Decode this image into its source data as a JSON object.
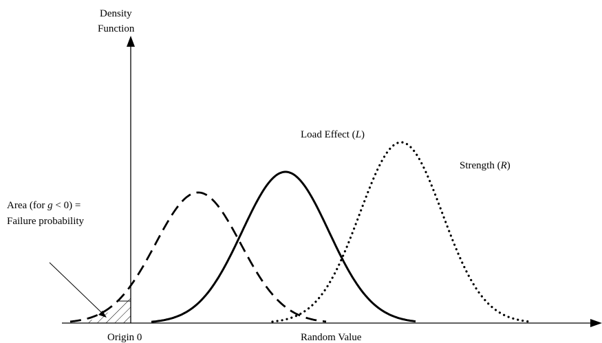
{
  "axis": {
    "y_label_line1": "Density",
    "y_label_line2": "Function",
    "x_label": "Random Value",
    "origin_label": "Origin 0"
  },
  "annotations": {
    "area_line1_prefix": "Area (for ",
    "area_var": "g",
    "area_line1_suffix": " < 0) =",
    "area_line2": "Failure probability",
    "load_prefix": "Load Effect (",
    "load_symbol": "L",
    "load_suffix": ")",
    "strength_prefix": "Strength (",
    "strength_symbol": "R",
    "strength_suffix": ")"
  },
  "colors": {
    "ink": "#000000",
    "background": "#ffffff"
  }
}
